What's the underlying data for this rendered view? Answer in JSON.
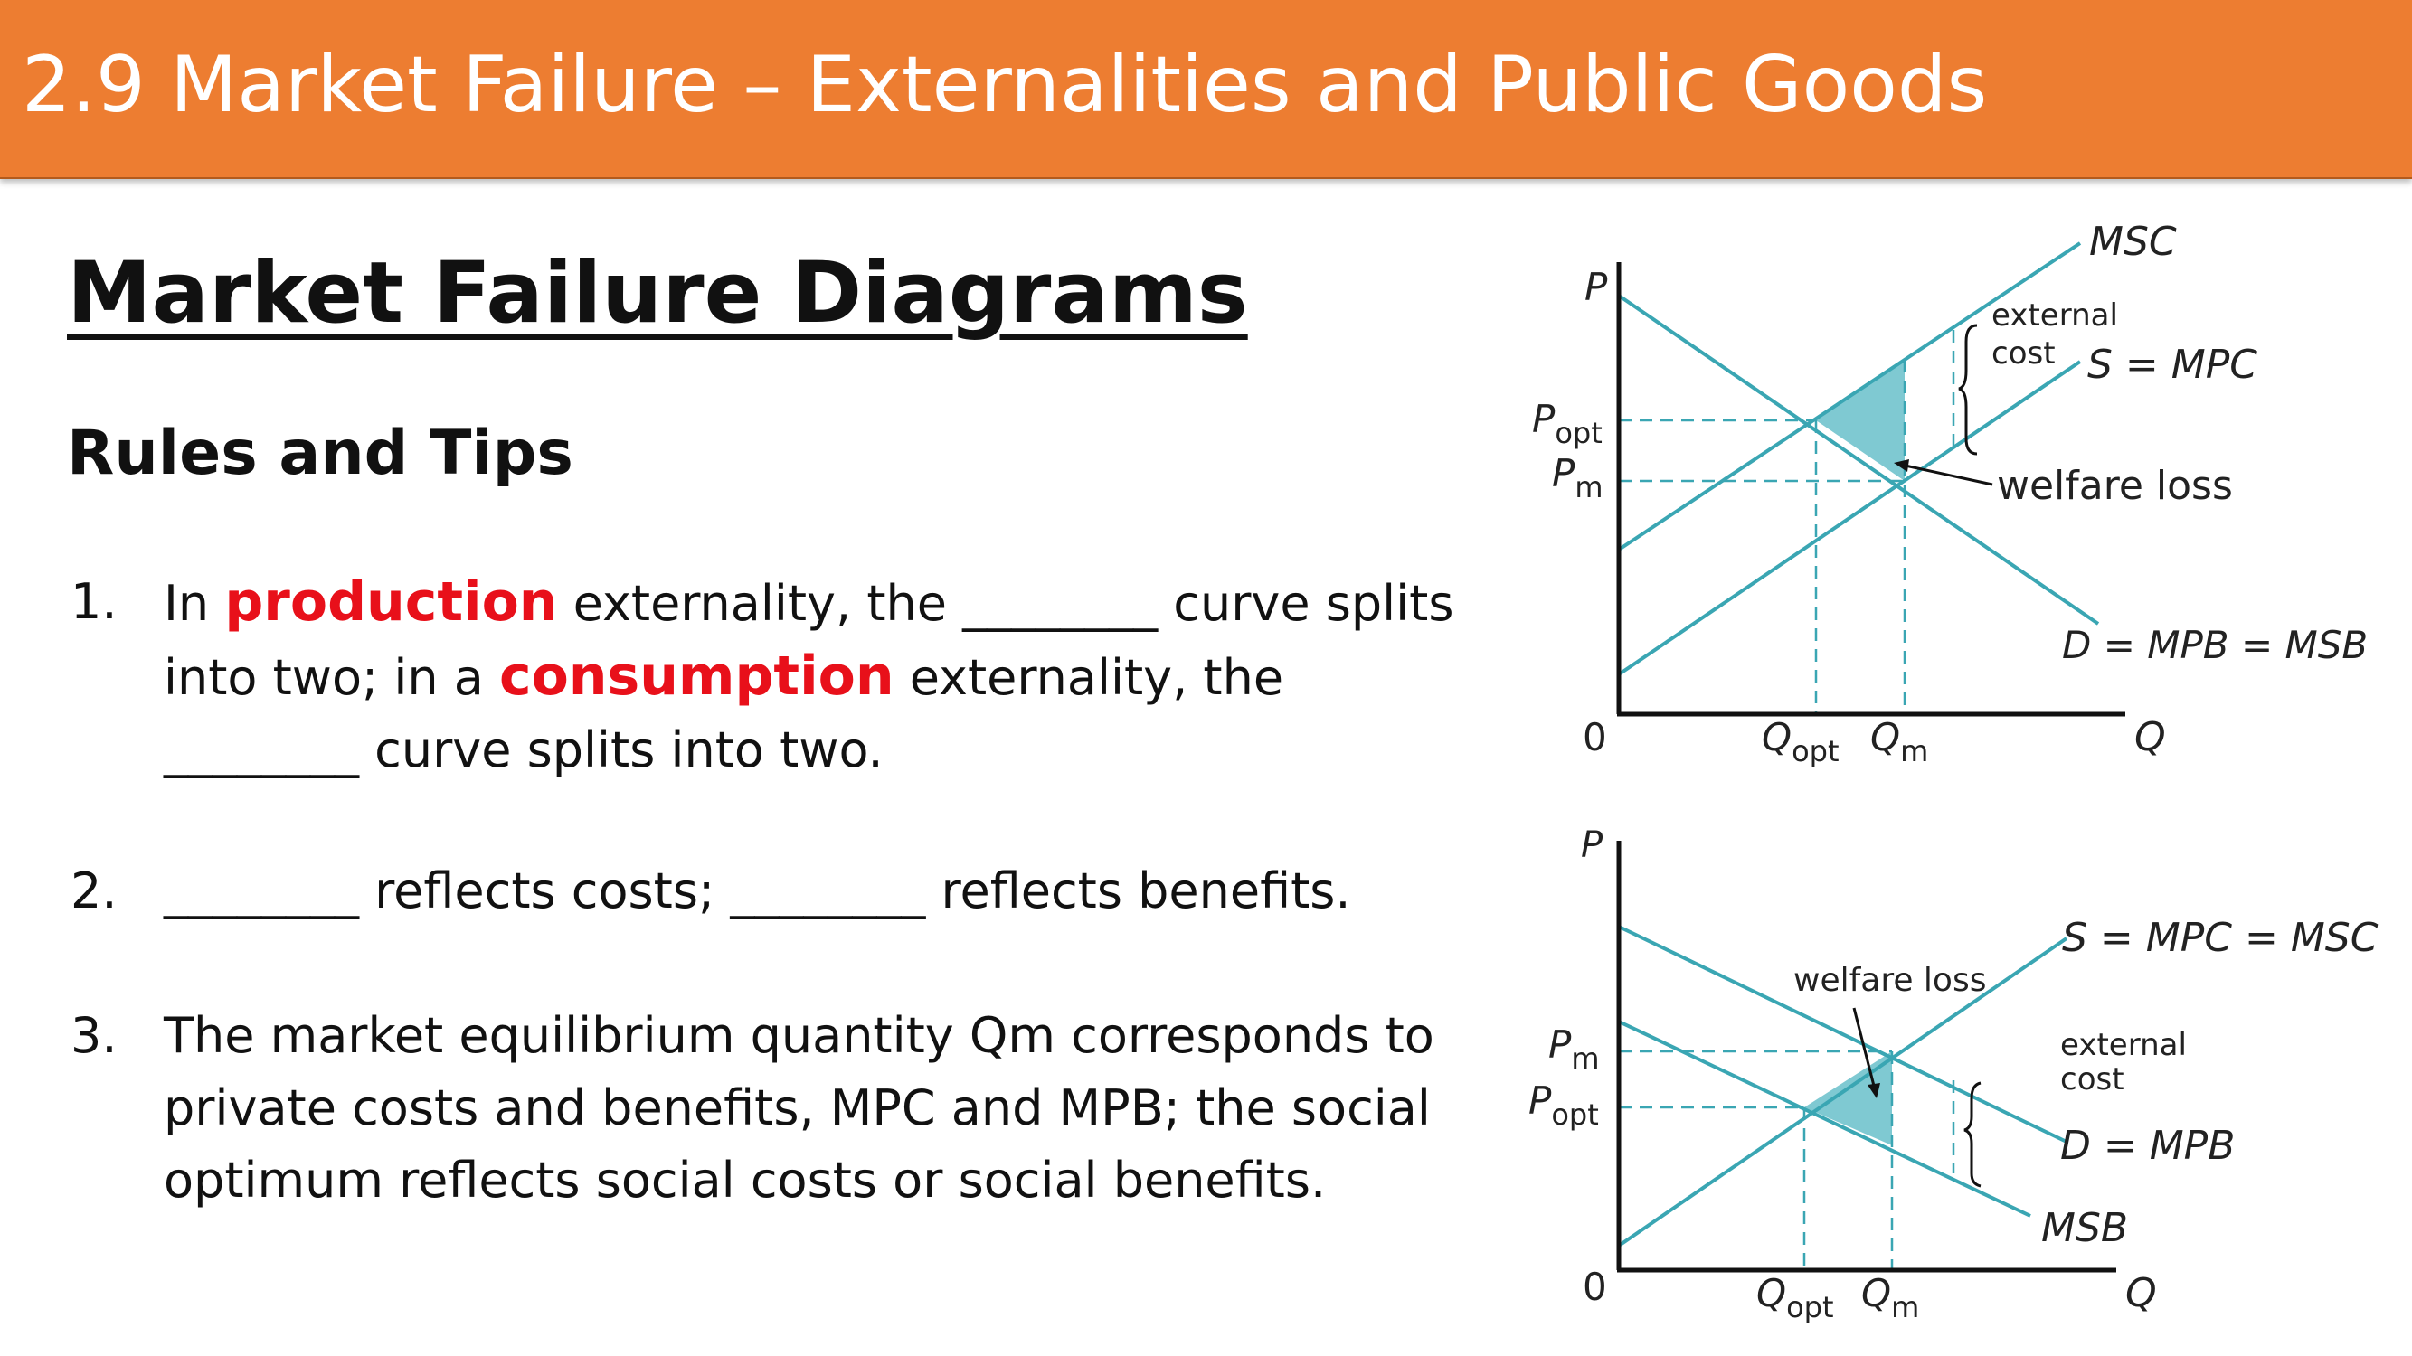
{
  "header": {
    "title": "2.9 Market Failure – Externalities and Public Goods"
  },
  "slide": {
    "title": "Market Failure Diagrams",
    "subtitle": "Rules and Tips",
    "rules": [
      {
        "number": "1.",
        "parts": {
          "a": "In ",
          "b": "production",
          "c": " externality, the ________ curve splits into two; in a ",
          "d": "consumption",
          "e": " externality, the ________ curve splits into two."
        }
      },
      {
        "number": "2.",
        "text": "________ reflects costs; ________ reflects benefits."
      },
      {
        "number": "3.",
        "text": "The market equilibrium quantity Qm corresponds to private costs and benefits, MPC and MPB; the social optimum reflects social costs or social benefits."
      }
    ]
  },
  "colors": {
    "banner": "#ED7D31",
    "highlight": "#e8101a",
    "curve": "#3aa6b3",
    "shade": "#7fc9d2"
  },
  "diagrams": {
    "production": {
      "axis_p": "P",
      "axis_q": "Q",
      "origin": "0",
      "curve_msc": "MSC",
      "curve_supply": "S = MPC",
      "curve_demand": "D = MPB = MSB",
      "external_cost_1": "external",
      "external_cost_2": "cost",
      "welfare_loss": "welfare loss",
      "p_opt_main": "P",
      "p_opt_sub": "opt",
      "p_m_main": "P",
      "p_m_sub": "m",
      "q_opt_main": "Q",
      "q_opt_sub": "opt",
      "q_m_main": "Q",
      "q_m_sub": "m"
    },
    "consumption": {
      "axis_p": "P",
      "axis_q": "Q",
      "origin": "0",
      "curve_supply": "S = MPC = MSC",
      "curve_demand": "D = MPB",
      "curve_msb": "MSB",
      "external_cost_1": "external",
      "external_cost_2": "cost",
      "welfare_loss": "welfare loss",
      "p_m_main": "P",
      "p_m_sub": "m",
      "p_opt_main": "P",
      "p_opt_sub": "opt",
      "q_opt_main": "Q",
      "q_opt_sub": "opt",
      "q_m_main": "Q",
      "q_m_sub": "m"
    }
  }
}
